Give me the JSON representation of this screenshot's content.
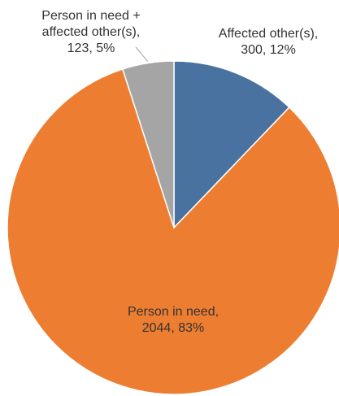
{
  "chart_data": {
    "type": "pie",
    "title": "",
    "slices": [
      {
        "label_lines": [
          "Affected other(s),",
          "300, 12%"
        ],
        "category": "Affected other(s)",
        "value": 300,
        "percent": "12%",
        "color": "#4a72a0"
      },
      {
        "label_lines": [
          "Person in need,",
          "2044, 83%"
        ],
        "category": "Person in need",
        "value": 2044,
        "percent": "83%",
        "color": "#ed7d31"
      },
      {
        "label_lines": [
          "Person in need +",
          "affected other(s),",
          "123, 5%"
        ],
        "category": "Person in need + affected other(s)",
        "value": 123,
        "percent": "5%",
        "color": "#a5a5a5"
      }
    ]
  }
}
